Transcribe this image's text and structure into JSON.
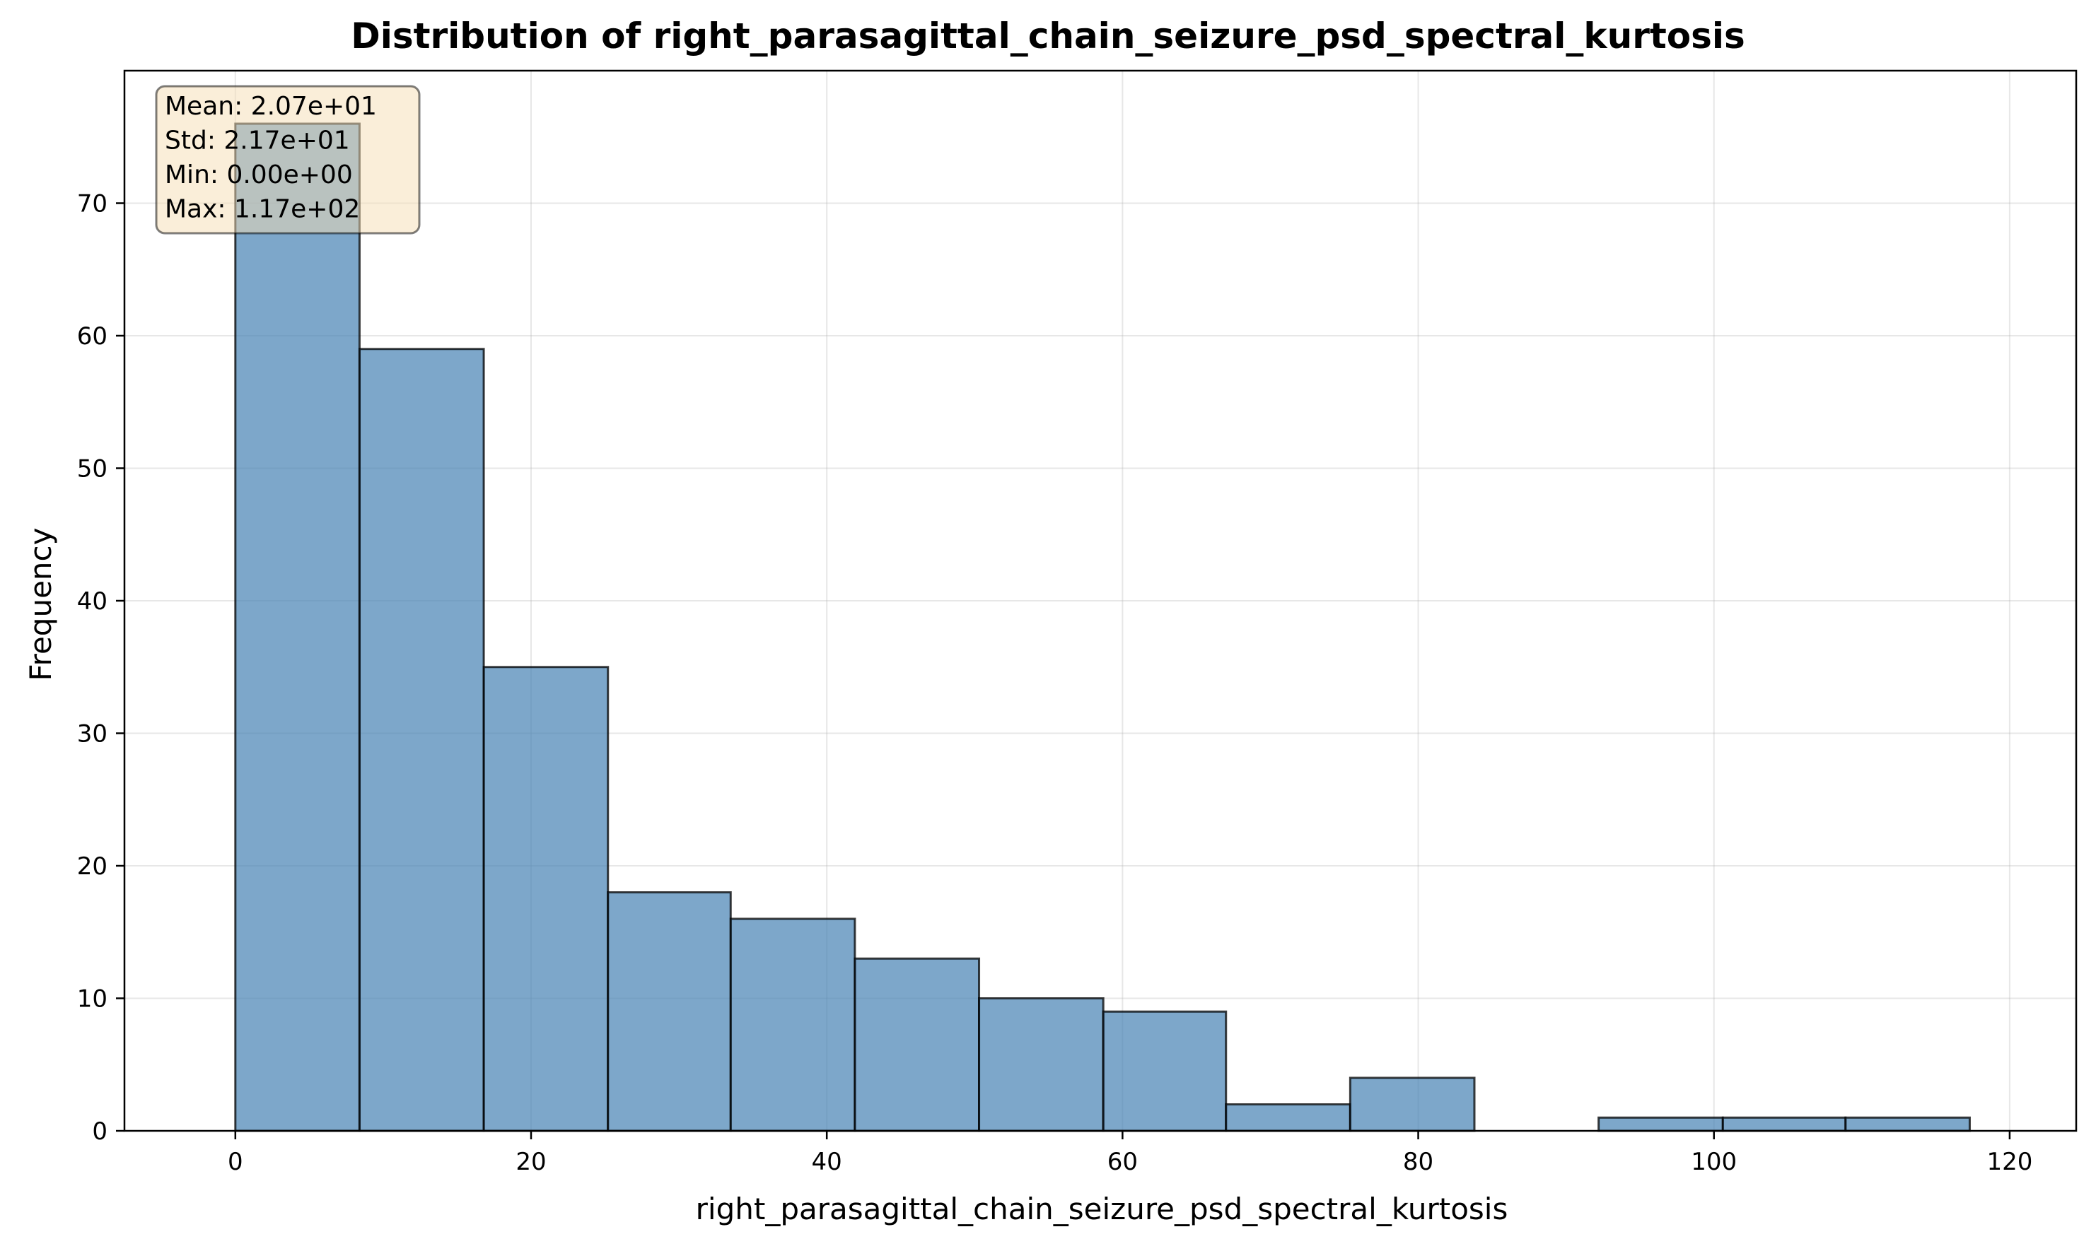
{
  "chart_data": {
    "type": "bar",
    "title": "Distribution of right_parasagittal_chain_seizure_psd_spectral_kurtosis",
    "xlabel": "right_parasagittal_chain_seizure_psd_spectral_kurtosis",
    "ylabel": "Frequency",
    "xlim": [
      -7.5,
      124.5
    ],
    "ylim": [
      0,
      80
    ],
    "xticks": [
      0,
      20,
      40,
      60,
      80,
      100,
      120
    ],
    "yticks": [
      0,
      10,
      20,
      30,
      40,
      50,
      60,
      70
    ],
    "grid": true,
    "bins": [
      {
        "start": 0.0,
        "end": 8.4,
        "count": 76
      },
      {
        "start": 8.4,
        "end": 16.8,
        "count": 59
      },
      {
        "start": 16.8,
        "end": 25.2,
        "count": 35
      },
      {
        "start": 25.2,
        "end": 33.5,
        "count": 18
      },
      {
        "start": 33.5,
        "end": 41.9,
        "count": 16
      },
      {
        "start": 41.9,
        "end": 50.3,
        "count": 13
      },
      {
        "start": 50.3,
        "end": 58.7,
        "count": 10
      },
      {
        "start": 58.7,
        "end": 67.0,
        "count": 9
      },
      {
        "start": 67.0,
        "end": 75.4,
        "count": 2
      },
      {
        "start": 75.4,
        "end": 83.8,
        "count": 4
      },
      {
        "start": 83.8,
        "end": 92.2,
        "count": 0
      },
      {
        "start": 92.2,
        "end": 100.6,
        "count": 1
      },
      {
        "start": 100.6,
        "end": 108.9,
        "count": 1
      },
      {
        "start": 108.9,
        "end": 117.3,
        "count": 1
      }
    ],
    "stats_box": {
      "placement": "top-left",
      "lines": [
        "Mean: 2.07e+01",
        "Std: 2.17e+01",
        "Min: 0.00e+00",
        "Max: 1.17e+02"
      ]
    },
    "colors": {
      "bar_fill": "#4682b4",
      "bar_edge": "#000000",
      "stats_box_fill": "#f5deb3"
    }
  }
}
